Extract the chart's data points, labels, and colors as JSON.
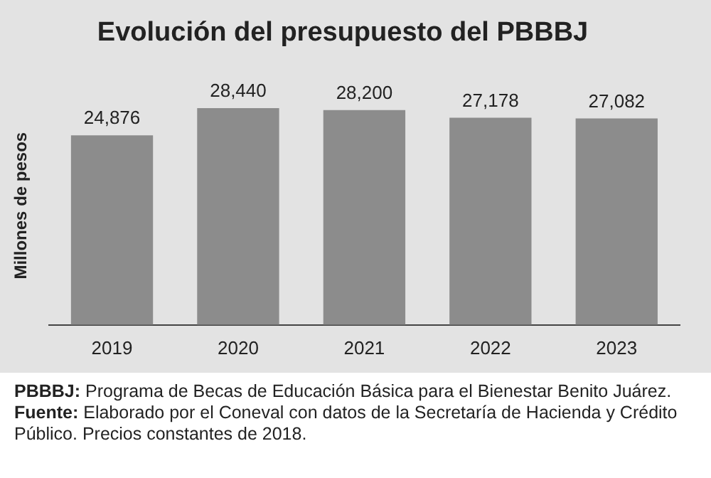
{
  "chart_data": {
    "type": "bar",
    "title": "Evolución del presupuesto del PBBBJ",
    "ylabel": "Millones de pesos",
    "categories": [
      "2019",
      "2020",
      "2021",
      "2022",
      "2023"
    ],
    "values": [
      24876,
      28440,
      28200,
      27178,
      27082
    ],
    "color": "#8c8c8c",
    "value_labels": [
      "24,876",
      "28,440",
      "28,200",
      "27,178",
      "27,082"
    ],
    "grid": false,
    "legend": false,
    "annotations": [
      "PBBBJ: Programa de Becas de Educación Básica para el Bienestar Benito Juárez.",
      "Fuente: Elaborado por el Coneval con datos de la Secretaría de Hacienda y Crédito Público. Precios constantes de 2018."
    ]
  }
}
